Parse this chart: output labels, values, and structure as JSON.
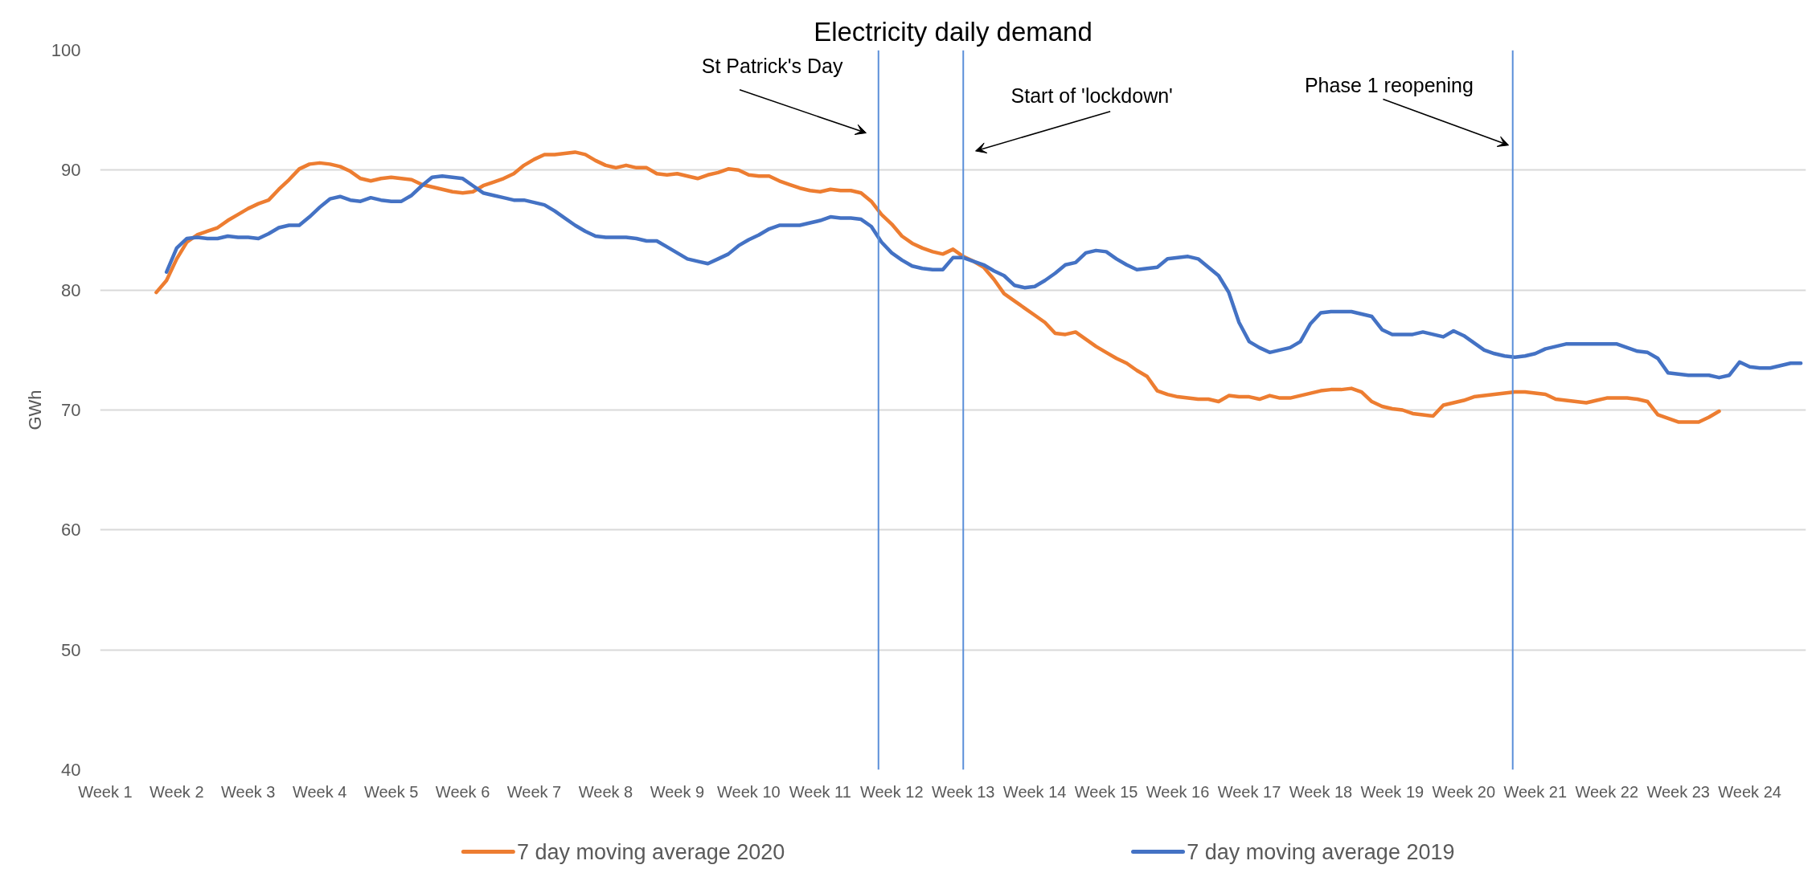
{
  "chart_data": {
    "type": "line",
    "title": "Electricity daily demand",
    "ylabel": "GWh",
    "categories": [
      "Week 1",
      null,
      null,
      null,
      null,
      null,
      null,
      "Week 2",
      null,
      null,
      null,
      null,
      null,
      null,
      "Week 3",
      null,
      null,
      null,
      null,
      null,
      null,
      "Week 4",
      null,
      null,
      null,
      null,
      null,
      null,
      "Week 5",
      null,
      null,
      null,
      null,
      null,
      null,
      "Week 6",
      null,
      null,
      null,
      null,
      null,
      null,
      "Week 7",
      null,
      null,
      null,
      null,
      null,
      null,
      "Week 8",
      null,
      null,
      null,
      null,
      null,
      null,
      "Week 9",
      null,
      null,
      null,
      null,
      null,
      null,
      "Week 10",
      null,
      null,
      null,
      null,
      null,
      null,
      "Week 11",
      null,
      null,
      null,
      null,
      null,
      null,
      "Week 12",
      null,
      null,
      null,
      null,
      null,
      null,
      "Week 13",
      null,
      null,
      null,
      null,
      null,
      null,
      "Week 14",
      null,
      null,
      null,
      null,
      null,
      null,
      "Week 15",
      null,
      null,
      null,
      null,
      null,
      null,
      "Week 16",
      null,
      null,
      null,
      null,
      null,
      null,
      "Week 17",
      null,
      null,
      null,
      null,
      null,
      null,
      "Week 18",
      null,
      null,
      null,
      null,
      null,
      null,
      "Week 19",
      null,
      null,
      null,
      null,
      null,
      null,
      "Week 20",
      null,
      null,
      null,
      null,
      null,
      null,
      "Week 21",
      null,
      null,
      null,
      null,
      null,
      null,
      "Week 22",
      null,
      null,
      null,
      null,
      null,
      null,
      "Week 23",
      null,
      null,
      null,
      null,
      null,
      null,
      "Week 24",
      null,
      null,
      null,
      null,
      null
    ],
    "ylim": [
      40,
      100
    ],
    "yticks": [
      40,
      50,
      60,
      70,
      80,
      90,
      100
    ],
    "grid": "y",
    "legend": "bottom",
    "annotations": [
      "St Patrick's Day",
      "Start of 'lockdown'",
      "Phase 1 reopening"
    ],
    "series": [
      {
        "name": "7 day moving average 2020",
        "color": "#ed7d31",
        "values": [
          null,
          null,
          null,
          null,
          null,
          79.8,
          80.8,
          82.6,
          84.0,
          84.6,
          84.9,
          85.2,
          85.8,
          86.3,
          86.8,
          87.2,
          87.5,
          88.4,
          89.2,
          90.1,
          90.5,
          90.6,
          90.5,
          90.3,
          89.9,
          89.3,
          89.1,
          89.3,
          89.4,
          89.3,
          89.2,
          88.8,
          88.6,
          88.4,
          88.2,
          88.1,
          88.2,
          88.7,
          89.0,
          89.3,
          89.7,
          90.4,
          90.9,
          91.3,
          91.3,
          91.4,
          91.5,
          91.3,
          90.8,
          90.4,
          90.2,
          90.4,
          90.2,
          90.2,
          89.7,
          89.6,
          89.7,
          89.5,
          89.3,
          89.6,
          89.8,
          90.1,
          90.0,
          89.6,
          89.5,
          89.5,
          89.1,
          88.8,
          88.5,
          88.3,
          88.2,
          88.4,
          88.3,
          88.3,
          88.1,
          87.4,
          86.3,
          85.5,
          84.5,
          83.9,
          83.5,
          83.2,
          83.0,
          83.4,
          82.8,
          82.4,
          81.9,
          80.9,
          79.7,
          79.1,
          78.5,
          77.9,
          77.3,
          76.4,
          76.3,
          76.5,
          75.9,
          75.3,
          74.8,
          74.3,
          73.9,
          73.3,
          72.8,
          71.6,
          71.3,
          71.1,
          71.0,
          70.9,
          70.9,
          70.7,
          71.2,
          71.1,
          71.1,
          70.9,
          71.2,
          71.0,
          71.0,
          71.2,
          71.4,
          71.6,
          71.7,
          71.7,
          71.8,
          71.5,
          70.7,
          70.3,
          70.1,
          70.0,
          69.7,
          69.6,
          69.5,
          70.4,
          70.6,
          70.8,
          71.1,
          71.2,
          71.3,
          71.4,
          71.5,
          71.5,
          71.4,
          71.3,
          70.9,
          70.8,
          70.7,
          70.6,
          70.8,
          71.0,
          71.0,
          71.0,
          70.9,
          70.7,
          69.6,
          69.3,
          69.0,
          69.0,
          69.0,
          69.4,
          69.9,
          null,
          null,
          null,
          null,
          null,
          null,
          null,
          null
        ]
      },
      {
        "name": "7 day moving average 2019",
        "color": "#4472c4",
        "values": [
          null,
          null,
          null,
          null,
          null,
          null,
          81.5,
          83.5,
          84.3,
          84.4,
          84.3,
          84.3,
          84.5,
          84.4,
          84.4,
          84.3,
          84.7,
          85.2,
          85.4,
          85.4,
          86.1,
          86.9,
          87.6,
          87.8,
          87.5,
          87.4,
          87.7,
          87.5,
          87.4,
          87.4,
          87.9,
          88.7,
          89.4,
          89.5,
          89.4,
          89.3,
          88.7,
          88.1,
          87.9,
          87.7,
          87.5,
          87.5,
          87.3,
          87.1,
          86.6,
          86.0,
          85.4,
          84.9,
          84.5,
          84.4,
          84.4,
          84.4,
          84.3,
          84.1,
          84.1,
          83.6,
          83.1,
          82.6,
          82.4,
          82.2,
          82.6,
          83.0,
          83.7,
          84.2,
          84.6,
          85.1,
          85.4,
          85.4,
          85.4,
          85.6,
          85.8,
          86.1,
          86.0,
          86.0,
          85.9,
          85.3,
          84.0,
          83.1,
          82.5,
          82.0,
          81.8,
          81.7,
          81.7,
          82.7,
          82.7,
          82.4,
          82.1,
          81.6,
          81.2,
          80.4,
          80.2,
          80.3,
          80.8,
          81.4,
          82.1,
          82.3,
          83.1,
          83.3,
          83.2,
          82.6,
          82.1,
          81.7,
          81.8,
          81.9,
          82.6,
          82.7,
          82.8,
          82.6,
          81.9,
          81.2,
          79.8,
          77.3,
          75.7,
          75.2,
          74.8,
          75.0,
          75.2,
          75.7,
          77.2,
          78.1,
          78.2,
          78.2,
          78.2,
          78.0,
          77.8,
          76.7,
          76.3,
          76.3,
          76.3,
          76.5,
          76.3,
          76.1,
          76.6,
          76.2,
          75.6,
          75.0,
          74.7,
          74.5,
          74.4,
          74.5,
          74.7,
          75.1,
          75.3,
          75.5,
          75.5,
          75.5,
          75.5,
          75.5,
          75.5,
          75.2,
          74.9,
          74.8,
          74.3,
          73.1,
          73.0,
          72.9,
          72.9,
          72.9,
          72.7,
          72.9,
          74.0,
          73.6,
          73.5,
          73.5,
          73.7,
          73.9,
          73.9
        ]
      }
    ]
  }
}
